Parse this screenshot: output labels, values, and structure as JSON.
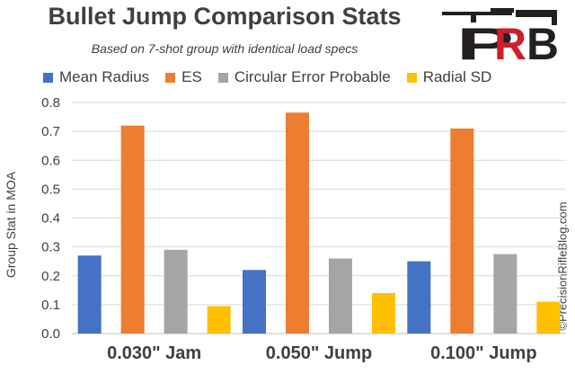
{
  "chart_data": {
    "type": "bar",
    "title": "Bullet Jump Comparison Stats",
    "subtitle": "Based on 7-shot group with identical load specs",
    "categories": [
      "0.030\" Jam",
      "0.050\" Jump",
      "0.100\" Jump"
    ],
    "series": [
      {
        "name": "Mean Radius",
        "color": "#4472c4",
        "values": [
          0.27,
          0.22,
          0.25
        ]
      },
      {
        "name": "ES",
        "color": "#ed7d31",
        "values": [
          0.72,
          0.765,
          0.71
        ]
      },
      {
        "name": "Circular Error Probable",
        "color": "#a5a5a5",
        "values": [
          0.29,
          0.26,
          0.275
        ]
      },
      {
        "name": "Radial SD",
        "color": "#ffc000",
        "values": [
          0.095,
          0.14,
          0.11
        ]
      }
    ],
    "xlabel": "",
    "ylabel": "Group Stat in MOA",
    "ylim": [
      0,
      0.8
    ],
    "yticks": [
      "0.0",
      "0.1",
      "0.2",
      "0.3",
      "0.4",
      "0.5",
      "0.6",
      "0.7",
      "0.8"
    ],
    "grid": true,
    "legend_position": "top"
  },
  "logo": {
    "text": "PRB",
    "colors": {
      "dark": "#231f20",
      "red": "#cc1f2d"
    }
  },
  "watermark": "©PrecisionRifleBlog.com",
  "colors": {
    "text": "#404040",
    "grid": "#d9d9d9"
  }
}
